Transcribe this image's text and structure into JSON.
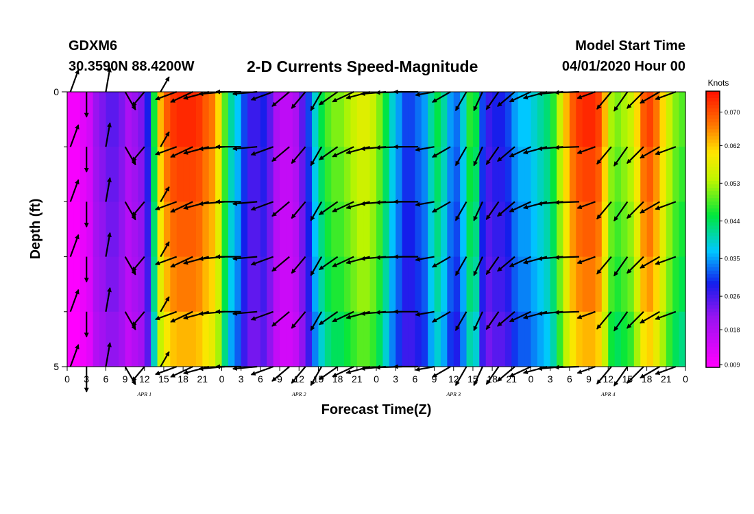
{
  "header": {
    "station": "GDXM6",
    "coords": "30.3590N 88.4200W",
    "title": "2-D Currents Speed-Magnitude",
    "start_label": "Model Start Time",
    "start_value": "04/01/2020 Hour 00"
  },
  "chart_data": {
    "type": "heatmap",
    "title": "2-D Currents Speed-Magnitude",
    "xlabel": "Forecast Time(Z)",
    "ylabel": "Depth (ft)",
    "x_range_hours": [
      0,
      96
    ],
    "ylim": [
      0,
      5
    ],
    "y_ticks": [
      "0",
      "5"
    ],
    "x_tick_labels": [
      "0",
      "3",
      "6",
      "9",
      "12",
      "15",
      "18",
      "21",
      "0",
      "3",
      "6",
      "9",
      "12",
      "15",
      "18",
      "21",
      "0",
      "3",
      "6",
      "9",
      "12",
      "15",
      "18",
      "21",
      "0",
      "3",
      "6",
      "9",
      "12",
      "15",
      "18",
      "21",
      "0"
    ],
    "day_labels": [
      {
        "label": "APR 1",
        "hour": 12
      },
      {
        "label": "APR 2",
        "hour": 36
      },
      {
        "label": "APR 3",
        "hour": 60
      },
      {
        "label": "APR 4",
        "hour": 84
      }
    ],
    "colorbar": {
      "unit": "Knots",
      "min": 0.009,
      "max": 0.075,
      "ticks": [
        "0.070",
        "0.062",
        "0.053",
        "0.044",
        "0.035",
        "0.026",
        "0.018",
        "0.009"
      ]
    },
    "speed_by_hour": [
      0.01,
      0.01,
      0.012,
      0.014,
      0.02,
      0.022,
      0.024,
      0.024,
      0.022,
      0.018,
      0.02,
      0.022,
      0.028,
      0.045,
      0.062,
      0.068,
      0.071,
      0.072,
      0.072,
      0.072,
      0.071,
      0.068,
      0.066,
      0.06,
      0.048,
      0.04,
      0.036,
      0.03,
      0.026,
      0.026,
      0.028,
      0.024,
      0.018,
      0.016,
      0.016,
      0.018,
      0.024,
      0.03,
      0.038,
      0.044,
      0.048,
      0.05,
      0.05,
      0.052,
      0.054,
      0.056,
      0.056,
      0.054,
      0.05,
      0.044,
      0.038,
      0.034,
      0.03,
      0.03,
      0.032,
      0.034,
      0.04,
      0.044,
      0.04,
      0.034,
      0.032,
      0.038,
      0.046,
      0.044,
      0.03,
      0.026,
      0.028,
      0.028,
      0.03,
      0.034,
      0.036,
      0.036,
      0.038,
      0.04,
      0.042,
      0.046,
      0.054,
      0.062,
      0.068,
      0.071,
      0.072,
      0.072,
      0.07,
      0.062,
      0.052,
      0.05,
      0.052,
      0.054,
      0.06,
      0.068,
      0.07,
      0.066,
      0.06,
      0.054,
      0.05,
      0.048,
      0.046
    ],
    "depth_factor": [
      1.02,
      0.99,
      0.96,
      0.93,
      0.88
    ],
    "vector_hours": [
      0.5,
      3,
      6,
      9,
      12,
      14.5,
      17,
      19.5,
      22,
      24.5,
      27,
      29.5,
      32,
      34.5,
      37,
      39.5,
      42,
      44.5,
      47,
      49.5,
      52,
      54.5,
      57,
      59.5,
      62,
      64.5,
      67,
      69.5,
      72,
      74.5,
      77,
      79.5,
      82,
      84.5,
      87,
      89.5,
      92,
      94.5
    ],
    "vector_depths_ft": [
      0,
      1,
      2,
      3,
      4,
      5
    ],
    "vector_dir_deg": [
      70,
      270,
      80,
      300,
      230,
      60,
      200,
      205,
      195,
      185,
      180,
      185,
      200,
      220,
      230,
      240,
      215,
      205,
      195,
      185,
      182,
      180,
      190,
      210,
      240,
      245,
      235,
      220,
      205,
      195,
      185,
      182,
      200,
      230,
      235,
      225,
      210,
      200
    ],
    "vector_len_rel": [
      0.85,
      0.95,
      0.9,
      0.7,
      0.6,
      0.5,
      0.8,
      0.9,
      1.0,
      1.0,
      0.95,
      0.9,
      0.85,
      0.8,
      0.75,
      0.75,
      0.8,
      0.85,
      0.9,
      0.95,
      1.0,
      0.9,
      0.6,
      0.7,
      0.75,
      0.7,
      0.75,
      0.8,
      0.85,
      0.9,
      0.95,
      0.9,
      0.6,
      0.8,
      0.85,
      0.85,
      0.8,
      0.75
    ]
  }
}
